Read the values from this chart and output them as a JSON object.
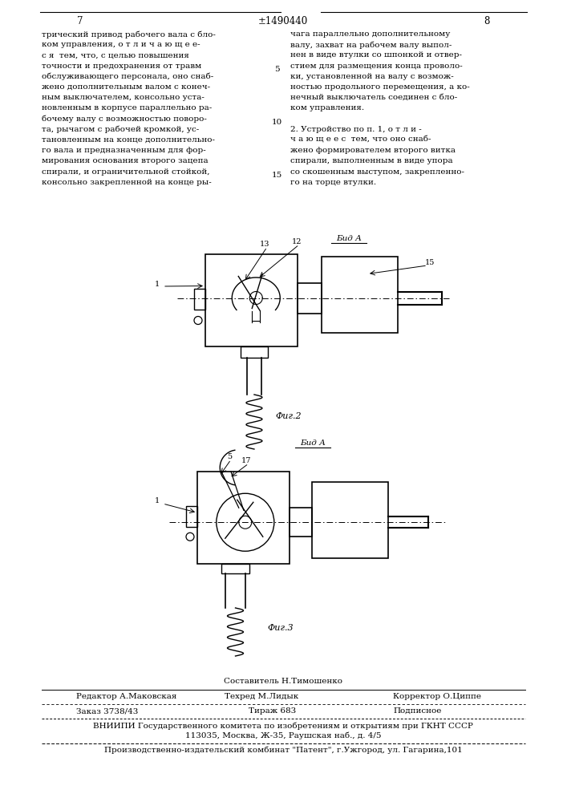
{
  "page_number_left": "7",
  "page_number_center": "±1490440",
  "page_number_right": "8",
  "col1_text": [
    "трический привод рабочего вала с бло-",
    "ком управления, о т л и ч а ю щ е е-",
    "с я  тем, что, с целью повышения",
    "точности и предохранения от травм",
    "обслуживающего персонала, оно снаб-",
    "жено дополнительным валом с конеч-",
    "ным выключателем, консольно уста-",
    "новленным в корпусе параллельно ра-",
    "бочему валу с возможностью поворо-",
    "та, рычагом с рабочей кромкой, ус-",
    "тановленным на конце дополнительно-",
    "го вала и предназначенным для фор-",
    "мирования основания второго зацепа",
    "спирали, и ограничительной стойкой,",
    "консольно закрепленной на конце ры-"
  ],
  "col2_text": [
    "чага параллельно дополнительному",
    "валу, захват на рабочем валу выпол-",
    "нен в виде втулки со шпонкой и отвер-",
    "стием для размещения конца проволо-",
    "ки, установленной на валу с возмож-",
    "ностью продольного перемещения, а ко-",
    "нечный выключатель соединен с бло-",
    "ком управления."
  ],
  "col2_item2": [
    "2. Устройство по п. 1, о т л и -",
    "ч а ю щ е е с  тем, что оно снаб-",
    "жено формирователем второго витка",
    "спирали, выполненным в виде упора",
    "со скошенным выступом, закрепленно-",
    "го на торце втулки."
  ],
  "fig2_label": "Фиг.2",
  "fig3_label": "Фиг.3",
  "vid_a_label": "Бид А",
  "composer_line": "Составитель Н.Тимошенко",
  "editor_label": "Редактор А.Маковская",
  "techred_label": "Техред М.Лидык",
  "corrector_label": "Корректор О.Циппе",
  "order_label": "Заказ 3738/43",
  "tirazh_label": "Тираж 683",
  "podpisnoe_label": "Подписное",
  "vnipi_line1": "ВНИИПИ Государственного комитета по изобретениям и открытиям при ГКНТ СССР",
  "vnipi_line2": "113035, Москва, Ж-35, Раушская наб., д. 4/5",
  "patent_line": "Производственно-издательский комбинат \"Патент\", г.Ужгород, ул. Гагарина,101",
  "background_color": "#ffffff",
  "text_color": "#000000"
}
